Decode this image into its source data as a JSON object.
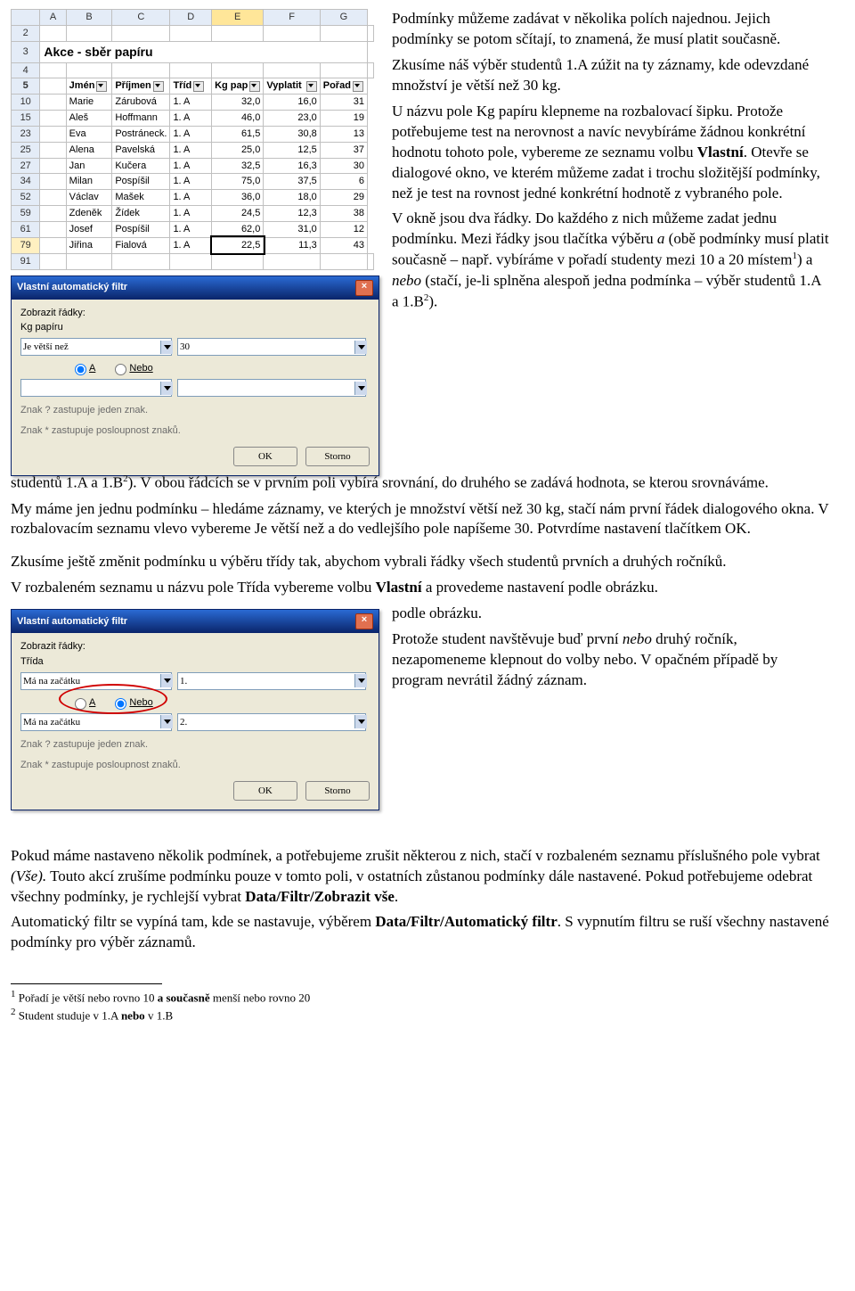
{
  "excel": {
    "columns": [
      "A",
      "B",
      "C",
      "D",
      "E",
      "F",
      "G"
    ],
    "sel_col_index": 4,
    "title": "Akce - sběr papíru",
    "header_row_num": "5",
    "headers": [
      "Jmén",
      "Příjmen",
      "Tříd",
      "Kg pap",
      "Vyplatit ",
      "Pořad"
    ],
    "rows": [
      {
        "n": "2",
        "c": [
          "",
          "",
          "",
          "",
          "",
          "",
          ""
        ]
      },
      {
        "n": "3",
        "title": true
      },
      {
        "n": "4",
        "c": [
          "",
          "",
          "",
          "",
          "",
          "",
          ""
        ]
      },
      {
        "n": "5",
        "hdr": true
      },
      {
        "n": "10",
        "c": [
          "Marie",
          "Zárubová",
          "1. A",
          "32,0",
          "16,0",
          "31"
        ]
      },
      {
        "n": "15",
        "c": [
          "Aleš",
          "Hoffmann",
          "1. A",
          "46,0",
          "23,0",
          "19"
        ]
      },
      {
        "n": "23",
        "c": [
          "Eva",
          "Postráneck.",
          "1. A",
          "61,5",
          "30,8",
          "13"
        ]
      },
      {
        "n": "25",
        "c": [
          "Alena",
          "Pavelská",
          "1. A",
          "25,0",
          "12,5",
          "37"
        ]
      },
      {
        "n": "27",
        "c": [
          "Jan",
          "Kučera",
          "1. A",
          "32,5",
          "16,3",
          "30"
        ]
      },
      {
        "n": "34",
        "c": [
          "Milan",
          "Pospíšil",
          "1. A",
          "75,0",
          "37,5",
          "6"
        ]
      },
      {
        "n": "52",
        "c": [
          "Václav",
          "Mašek",
          "1. A",
          "36,0",
          "18,0",
          "29"
        ]
      },
      {
        "n": "59",
        "c": [
          "Zdeněk",
          "Žídek",
          "1. A",
          "24,5",
          "12,3",
          "38"
        ]
      },
      {
        "n": "61",
        "c": [
          "Josef",
          "Pospíšil",
          "1. A",
          "62,0",
          "31,0",
          "12"
        ]
      },
      {
        "n": "79",
        "c": [
          "Jiřina",
          "Fialová",
          "1. A",
          "22,5",
          "11,3",
          "43"
        ],
        "sel": true
      },
      {
        "n": "91",
        "c": [
          "",
          "",
          "",
          "",
          "",
          "",
          ""
        ]
      }
    ]
  },
  "dlg1": {
    "title": "Vlastní automatický filtr",
    "show_label": "Zobrazit řádky:",
    "field": "Kg papíru",
    "op1": "Je větší než",
    "val1": "30",
    "and": "A",
    "or": "Nebo",
    "and_checked": true,
    "hint1": "Znak ? zastupuje jeden znak.",
    "hint2": "Znak * zastupuje posloupnost znaků.",
    "ok": "OK",
    "cancel": "Storno"
  },
  "dlg2": {
    "title": "Vlastní automatický filtr",
    "show_label": "Zobrazit řádky:",
    "field": "Třída",
    "op1": "Má na začátku",
    "val1": "1.",
    "op2": "Má na začátku",
    "val2": "2.",
    "and": "A",
    "or": "Nebo",
    "and_checked": false,
    "hint1": "Znak ? zastupuje jeden znak.",
    "hint2": "Znak * zastupuje posloupnost znaků.",
    "ok": "OK",
    "cancel": "Storno"
  },
  "text": {
    "p1": "Podmínky můžeme zadávat v několika polích najednou. Jejich podmínky se potom sčítají, to znamená, že musí platit současně.",
    "p2": "Zkusíme náš výběr studentů 1.A zúžit na ty záznamy, kde odevzdané množství je větší než 30 kg.",
    "p3a": "U názvu pole Kg papíru klepneme na rozbalovací šipku. Protože potřebujeme test na nerovnost a navíc nevybíráme žádnou konkrétní hodnotu tohoto pole, vybereme ze seznamu volbu ",
    "p3b": "Vlastní",
    "p3c": ". Otevře se dialogové okno, ve kterém můžeme zadat i trochu složitější podmínky, než je test na rovnost jedné konkrétní hodnotě z vybraného pole.",
    "p4a": "V okně jsou dva řádky. Do každého z nich můžeme zadat jednu podmínku. Mezi řádky jsou tlačítka výběru ",
    "p4i1": "a",
    "p4b": " (obě podmínky musí platit současně – např. vybíráme v pořadí studenty mezi 10 a 20 místem",
    "p4sup1": "1",
    "p4c": ") a ",
    "p4i2": "nebo",
    "p4d": " (stačí, je-li splněna alespoň jedna podmínka – výběr studentů 1.A a 1.B",
    "p4sup2": "2",
    "p4e": "). V obou řádcích se v prvním poli vybírá srovnání, do druhého se zadává hodnota, se kterou srovnáváme.",
    "p5": "My máme jen jednu podmínku – hledáme záznamy, ve kterých je množství větší než 30 kg, stačí nám první řádek dialogového okna. V rozbalovacím seznamu vlevo vybereme Je větší než a do vedlejšího pole napíšeme 30. Potvrdíme nastavení tlačítkem OK.",
    "p6": "Zkusíme ještě změnit podmínku u výběru třídy tak, abychom vybrali řádky všech studentů prvních a druhých ročníků.",
    "p7a": "V rozbaleném seznamu u názvu pole Třída vybereme volbu ",
    "p7b": "Vlastní",
    "p7c": " a provedeme nastavení podle obrázku.",
    "p8a": "Protože student navštěvuje buď první ",
    "p8i": "nebo",
    "p8b": " druhý ročník, nezapomeneme klepnout do volby nebo. V opačném případě by program nevrátil žádný záznam.",
    "p9a": "Pokud máme nastaveno několik podmínek, a potřebujeme zrušit některou z nich, stačí v rozbaleném seznamu příslušného pole vybrat ",
    "p9i": "(Vše).",
    "p9b": " Touto akcí zrušíme podmínku pouze v tomto poli, v ostatních zůstanou podmínky dále nastavené. Pokud potřebujeme odebrat všechny podmínky, je rychlejší vybrat ",
    "p9bold": "Data/Filtr/Zobrazit vše",
    "p9c": ".",
    "p10a": "Automatický filtr se vypíná tam, kde se nastavuje, výběrem ",
    "p10bold": "Data/Filtr/Automatický filtr",
    "p10b": ". S vypnutím filtru se ruší všechny nastavené podmínky pro výběr záznamů.",
    "fn1a": "Pořadí je větší nebo rovno 10 ",
    "fn1b": "a současně",
    "fn1c": " menší nebo rovno 20",
    "fn2a": "Student studuje v 1.A ",
    "fn2b": "nebo",
    "fn2c": " v 1.B"
  }
}
